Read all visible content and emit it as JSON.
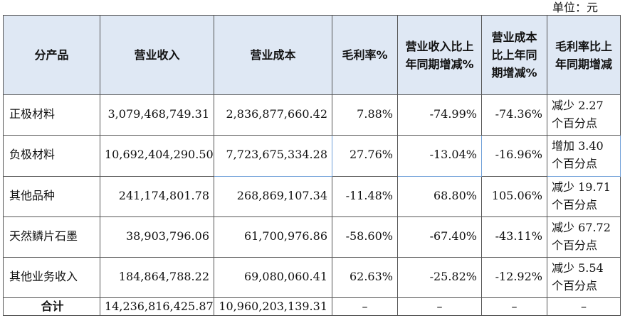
{
  "unit_label": "单位：元",
  "headers": {
    "product": "分产品",
    "revenue": "营业收入",
    "cost": "营业成本",
    "margin": "毛利率%",
    "revenue_change": "营业收入比上年同期增减%",
    "cost_change": "营业成本比上年同期增减%",
    "margin_change": "毛利率比上年同期增减"
  },
  "rows": [
    {
      "product": "正极材料",
      "revenue": "3,079,468,749.31",
      "cost": "2,836,877,660.42",
      "margin": "7.88%",
      "revenue_change": "-74.99%",
      "cost_change": "-74.36%",
      "margin_change": "减少 2.27 个百分点"
    },
    {
      "product": "负极材料",
      "revenue": "10,692,404,290.50",
      "cost": "7,723,675,334.28",
      "margin": "27.76%",
      "revenue_change": "-13.04%",
      "cost_change": "-16.96%",
      "margin_change": "增加 3.40 个百分点"
    },
    {
      "product": "其他品种",
      "revenue": "241,174,801.78",
      "cost": "268,869,107.34",
      "margin": "-11.48%",
      "revenue_change": "68.80%",
      "cost_change": "105.06%",
      "margin_change": "减少 19.71 个百分点"
    },
    {
      "product": "天然鳞片石墨",
      "revenue": "38,903,796.06",
      "cost": "61,700,976.86",
      "margin": "-58.60%",
      "revenue_change": "-67.40%",
      "cost_change": "-43.11%",
      "margin_change": "减少 67.72 个百分点"
    },
    {
      "product": "其他业务收入",
      "revenue": "184,864,788.22",
      "cost": "69,080,060.41",
      "margin": "62.63%",
      "revenue_change": "-25.82%",
      "cost_change": "-12.92%",
      "margin_change": "减少 5.54 个百分点"
    }
  ],
  "total": {
    "label": "合计",
    "revenue": "14,236,816,425.87",
    "cost": "10,960,203,139.31",
    "margin": "–",
    "revenue_change": "–",
    "cost_change": "–",
    "margin_change": "–"
  },
  "colors": {
    "header_bg": "#dfe8f4",
    "border": "#555555",
    "highlight_border": "#6f9fd8"
  }
}
